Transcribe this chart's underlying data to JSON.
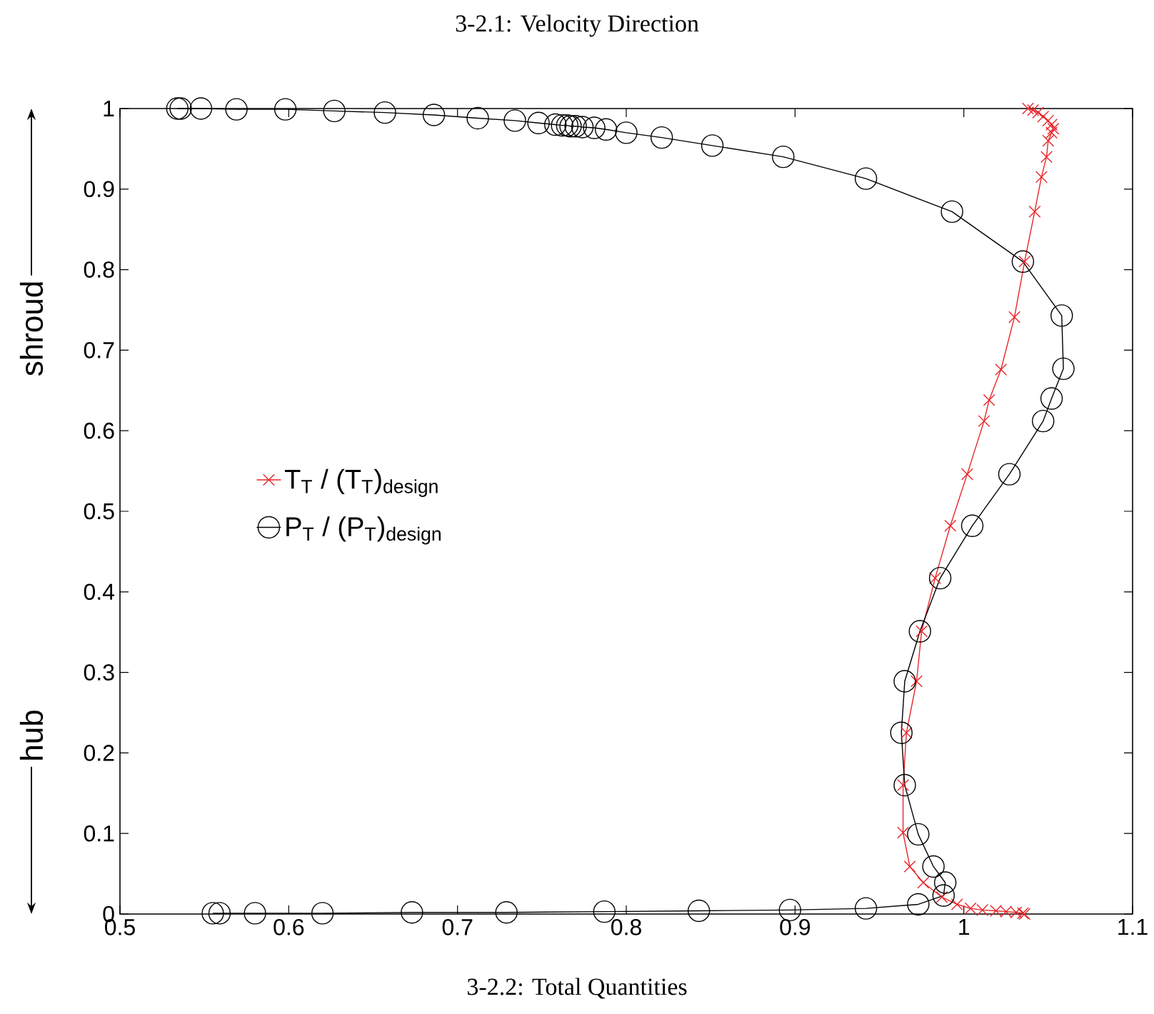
{
  "chart_data": {
    "type": "line",
    "title": "3-2.1: Velocity Direction",
    "annotations": [
      "shroud",
      "hub",
      "3-2.2: Total Quantities"
    ],
    "xlim": [
      0.5,
      1.1
    ],
    "ylim": [
      0,
      1
    ],
    "xticks": [
      0.5,
      0.6,
      0.7,
      0.8,
      0.9,
      1,
      1.1
    ],
    "yticks": [
      0,
      0.1,
      0.2,
      0.3,
      0.4,
      0.5,
      0.6,
      0.7,
      0.8,
      0.9,
      1
    ],
    "grid": false,
    "legend": "left",
    "line_style": "solid",
    "series": [
      {
        "name": "T$_{T}$ / (T$_{T}$)$_{design}$",
        "color": "#e8262a",
        "marker": "cross",
        "x": [
          1.036,
          1.035,
          1.031,
          1.025,
          1.019,
          1.011,
          1.004,
          0.996,
          0.987,
          0.976,
          0.968,
          0.964,
          0.964,
          0.966,
          0.972,
          0.975,
          0.983,
          0.992,
          1.002,
          1.012,
          1.015,
          1.022,
          1.03,
          1.036,
          1.042,
          1.046,
          1.049,
          1.05,
          1.052,
          1.053,
          1.052,
          1.05,
          1.047,
          1.044,
          1.041,
          1.038
        ],
        "values": [
          0,
          0.001,
          0.002,
          0.003,
          0.004,
          0.005,
          0.007,
          0.012,
          0.021,
          0.039,
          0.059,
          0.101,
          0.16,
          0.225,
          0.289,
          0.351,
          0.417,
          0.482,
          0.546,
          0.612,
          0.638,
          0.676,
          0.741,
          0.81,
          0.872,
          0.915,
          0.94,
          0.96,
          0.97,
          0.975,
          0.98,
          0.985,
          0.99,
          0.995,
          0.998,
          1.0
        ]
      },
      {
        "name": "P$_{T}$ / (P$_{T}$)$_{design}$",
        "color": "#000000",
        "marker": "circle",
        "x": [
          0.555,
          0.559,
          0.58,
          0.62,
          0.673,
          0.729,
          0.787,
          0.843,
          0.897,
          0.942,
          0.973,
          0.988,
          0.989,
          0.982,
          0.973,
          0.965,
          0.963,
          0.965,
          0.974,
          0.986,
          1.005,
          1.027,
          1.047,
          1.052,
          1.059,
          1.058,
          1.035,
          0.993,
          0.942,
          0.893,
          0.851,
          0.821,
          0.8,
          0.788,
          0.781,
          0.774,
          0.77,
          0.767,
          0.765,
          0.762,
          0.758,
          0.748,
          0.734,
          0.712,
          0.686,
          0.657,
          0.627,
          0.598,
          0.569,
          0.548,
          0.536,
          0.534
        ],
        "values": [
          0.001,
          0.001,
          0.001,
          0.001,
          0.002,
          0.002,
          0.003,
          0.004,
          0.005,
          0.007,
          0.012,
          0.023,
          0.039,
          0.059,
          0.099,
          0.16,
          0.225,
          0.289,
          0.351,
          0.417,
          0.482,
          0.546,
          0.612,
          0.64,
          0.677,
          0.743,
          0.81,
          0.872,
          0.913,
          0.94,
          0.954,
          0.964,
          0.97,
          0.974,
          0.976,
          0.977,
          0.978,
          0.978,
          0.979,
          0.979,
          0.98,
          0.982,
          0.985,
          0.988,
          0.992,
          0.995,
          0.997,
          0.999,
          0.999,
          1.0,
          1.0,
          1.0
        ]
      }
    ]
  }
}
